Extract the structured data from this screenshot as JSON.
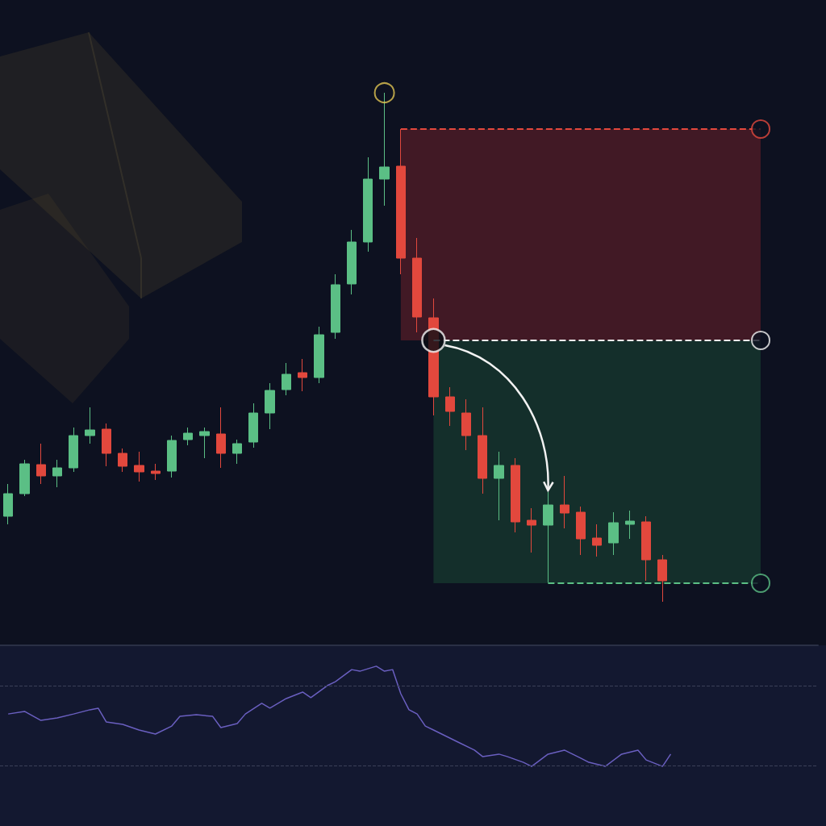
{
  "chart_data": [
    {
      "type": "candlestick",
      "tick_labels": false,
      "grid": false,
      "ylim": [
        0,
        100
      ],
      "up_color": "#5bbf85",
      "down_color": "#e2483d",
      "categories": [
        null,
        null,
        null,
        null,
        null,
        null,
        null,
        null,
        null,
        null,
        null,
        null,
        null,
        null,
        null,
        null,
        null,
        null,
        null,
        null,
        null,
        null,
        null,
        null,
        null,
        null,
        null,
        null,
        null,
        null,
        null,
        null,
        null,
        null,
        null,
        null,
        null,
        null,
        null,
        null,
        null,
        null,
        null,
        null,
        null,
        null,
        null,
        null,
        null,
        null
      ],
      "open": [
        20,
        23.5,
        28,
        26.25,
        27.5,
        32.5,
        33.5,
        29.75,
        27.875,
        27,
        27,
        31.875,
        32.5,
        32.75,
        29.75,
        31.5,
        36,
        39.625,
        42.25,
        41.5,
        48.5,
        56,
        62.5,
        72.25,
        74.25,
        60,
        50.75,
        38.5,
        36,
        32.5,
        25.875,
        27.875,
        19.375,
        18.625,
        21.75,
        20.625,
        16.625,
        15.875,
        18.75,
        19.125,
        13.25,
        null,
        null,
        null,
        null,
        null,
        null,
        null,
        null,
        null
      ],
      "close": [
        23.5,
        28.125,
        26.25,
        27.5,
        32.5,
        33.375,
        29.75,
        27.75,
        26.875,
        26.625,
        31.75,
        32.875,
        33.125,
        29.75,
        31.25,
        36,
        39.5,
        42,
        41.5,
        48.125,
        55.875,
        62.5,
        72.25,
        74.125,
        60,
        50.875,
        38.5,
        36.25,
        32.5,
        25.875,
        27.875,
        19.125,
        18.625,
        21.75,
        20.5,
        16.5,
        15.5,
        19,
        19.25,
        13.25,
        10,
        null,
        null,
        null,
        null,
        null,
        null,
        null,
        null,
        null
      ],
      "low": [
        18.75,
        23.125,
        25,
        24.5,
        26.875,
        31.25,
        27.75,
        26.875,
        25.375,
        25.625,
        26,
        31,
        29,
        27.5,
        28.125,
        30.625,
        33.5,
        38.75,
        39.375,
        40.625,
        47.5,
        54.375,
        61,
        68.125,
        57.5,
        48.5,
        35.625,
        34,
        30.25,
        23.5,
        19.375,
        17.5,
        14.375,
        9.75,
        18.125,
        14,
        13.75,
        14,
        16.5,
        10,
        6.75,
        null,
        null,
        null,
        null,
        null,
        null,
        null,
        null,
        null
      ],
      "high": [
        25,
        28.75,
        31.25,
        28.75,
        33.75,
        36.875,
        34.375,
        30.5,
        30,
        28.125,
        32.5,
        33.75,
        33.75,
        36.875,
        31.875,
        37.5,
        40.625,
        43.75,
        44.375,
        49.375,
        57.5,
        64.375,
        75.625,
        85.625,
        80,
        63.125,
        53.75,
        40,
        38.125,
        36.875,
        30,
        29,
        21.25,
        23.75,
        26.25,
        21.5,
        18.75,
        20.625,
        20.875,
        20,
        14,
        null,
        null,
        null,
        null,
        null,
        null,
        null,
        null,
        null
      ],
      "position": {
        "side": "short",
        "entry": 47.25,
        "stop": 80,
        "target": 9.625,
        "entry_index": 26,
        "stop_start_index": 24,
        "target_start_index": 33,
        "end_index": 46,
        "peak_index": 23,
        "arrow_end_index": 33,
        "arrow_end_price": 24
      }
    },
    {
      "type": "line",
      "tick_labels": false,
      "grid": false,
      "color": "#6a5fc0",
      "xlim": [
        -0.5,
        49.5
      ],
      "ylim": [
        0,
        90
      ],
      "levels": [
        70,
        30
      ],
      "x": [
        0,
        1,
        2,
        3,
        4,
        5,
        5.5,
        6,
        7,
        8,
        9,
        10,
        10.5,
        11.5,
        12.5,
        13,
        14,
        14.5,
        15.5,
        16,
        17,
        18,
        18.5,
        19.5,
        20,
        21,
        21.5,
        22.5,
        23,
        23.5,
        24,
        24.5,
        25,
        25.5,
        26,
        27,
        27.5,
        28.5,
        29,
        30,
        30.5,
        31.5,
        32,
        33,
        34,
        35,
        35.5,
        36.5,
        37.5,
        38.5,
        39,
        40,
        40.5
      ],
      "values": [
        55.8,
        57.1,
        52.6,
        53.8,
        55.8,
        57.9,
        58.7,
        51.8,
        50.6,
        47.8,
        45.8,
        49.8,
        54.6,
        55.4,
        54.6,
        49.0,
        51.0,
        55.8,
        61.1,
        58.7,
        63.5,
        66.7,
        63.9,
        69.9,
        71.9,
        77.9,
        77.1,
        79.6,
        77.1,
        77.9,
        65.9,
        57.9,
        55.8,
        49.8,
        47.8,
        43.8,
        41.8,
        37.8,
        34.6,
        35.8,
        34.6,
        31.7,
        29.7,
        35.8,
        37.8,
        33.8,
        31.7,
        29.7,
        35.8,
        37.8,
        32.9,
        29.7,
        35.8
      ]
    }
  ]
}
